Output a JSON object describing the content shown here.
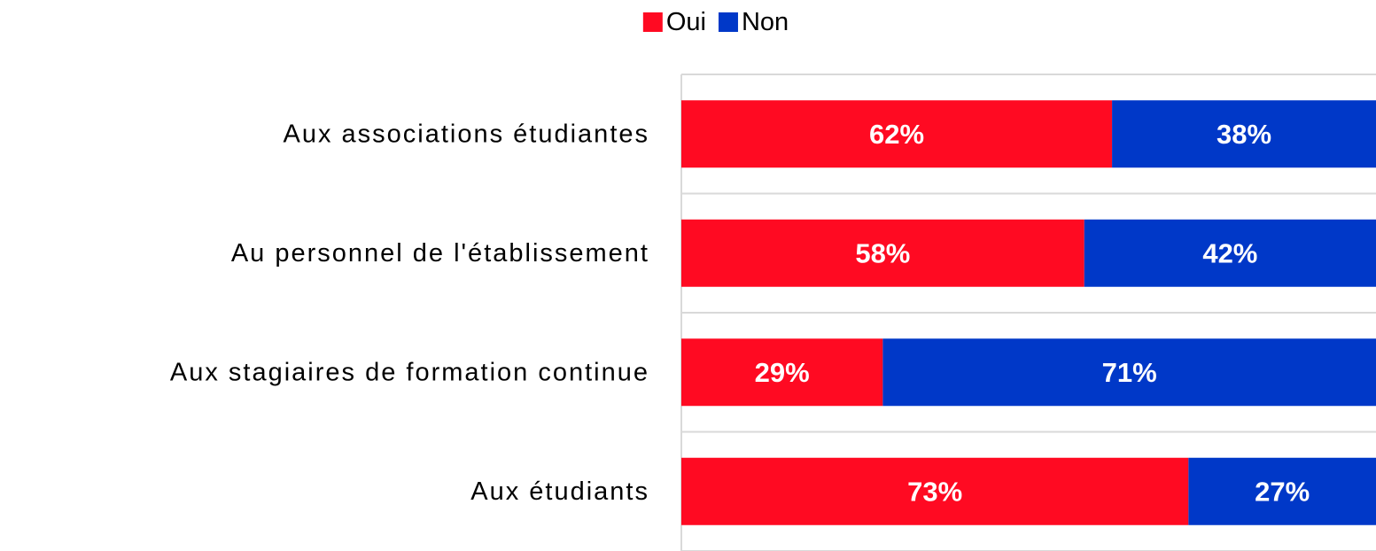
{
  "chart_data": {
    "type": "stacked-bar-horizontal",
    "categories": [
      "Aux associations étudiantes",
      "Au personnel de l'établissement",
      "Aux stagiaires de formation continue",
      "Aux étudiants"
    ],
    "series": [
      {
        "name": "Oui",
        "color": "#ff0a22",
        "values": [
          62,
          58,
          29,
          73
        ],
        "value_labels": [
          "62%",
          "58%",
          "29%",
          "73%"
        ]
      },
      {
        "name": "Non",
        "color": "#0038c8",
        "values": [
          38,
          42,
          71,
          27
        ],
        "value_labels": [
          "38%",
          "42%",
          "71%",
          "27%"
        ]
      }
    ],
    "xlim": [
      0,
      100
    ],
    "legend": "top"
  }
}
